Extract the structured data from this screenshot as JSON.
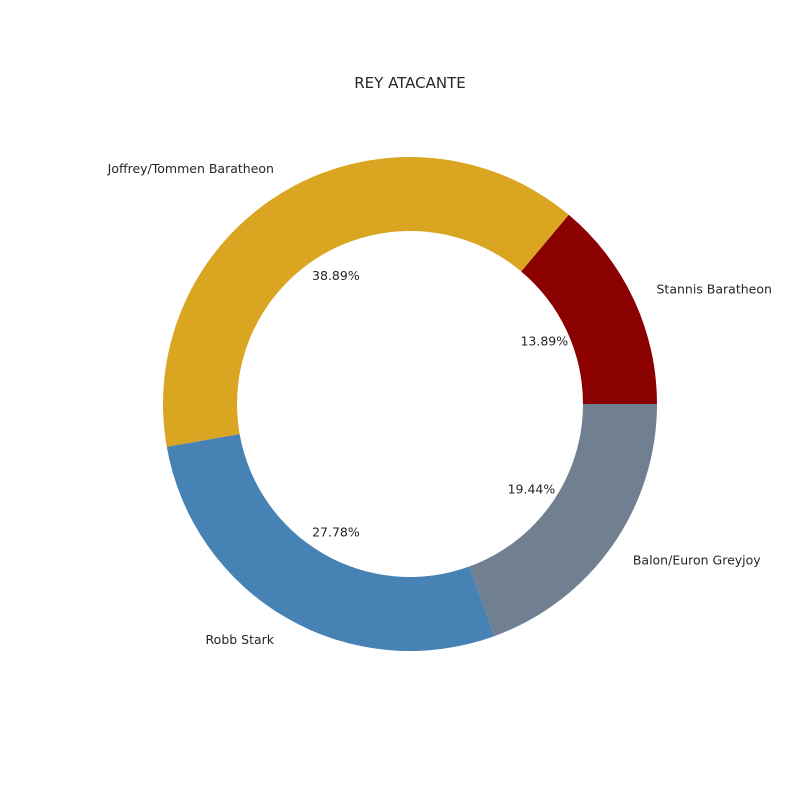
{
  "chart_data": {
    "type": "pie",
    "style": "donut",
    "title": "REY ATACANTE",
    "categories": [
      "Stannis Baratheon",
      "Joffrey/Tommen Baratheon",
      "Robb Stark",
      "Balon/Euron Greyjoy"
    ],
    "values": [
      13.89,
      38.89,
      27.78,
      19.44
    ],
    "labels_pct": [
      "13.89%",
      "38.89%",
      "27.78%",
      "19.44%"
    ],
    "colors": [
      "#8b0000",
      "#daa520",
      "#4682b4",
      "#708090"
    ],
    "legend": "none"
  }
}
